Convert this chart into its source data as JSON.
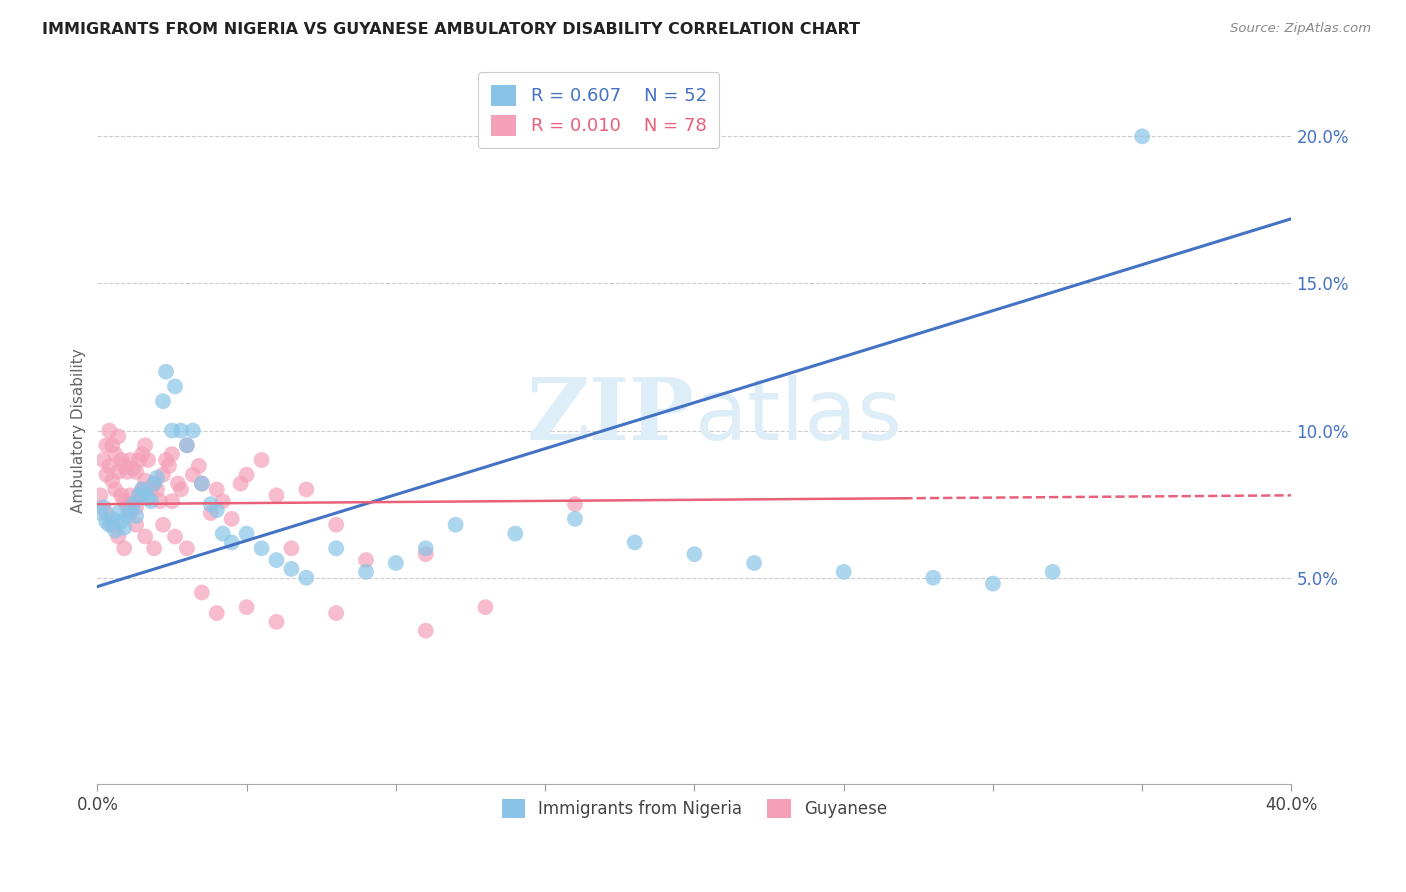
{
  "title": "IMMIGRANTS FROM NIGERIA VS GUYANESE AMBULATORY DISABILITY CORRELATION CHART",
  "source": "Source: ZipAtlas.com",
  "ylabel": "Ambulatory Disability",
  "xlim": [
    0.0,
    0.4
  ],
  "ylim": [
    -0.02,
    0.22
  ],
  "yticks": [
    0.05,
    0.1,
    0.15,
    0.2
  ],
  "ytick_labels": [
    "5.0%",
    "10.0%",
    "15.0%",
    "20.0%"
  ],
  "xticks": [
    0.0,
    0.05,
    0.1,
    0.15,
    0.2,
    0.25,
    0.3,
    0.35,
    0.4
  ],
  "xtick_labels": [
    "0.0%",
    "",
    "",
    "",
    "",
    "",
    "",
    "",
    "40.0%"
  ],
  "legend_label1": "Immigrants from Nigeria",
  "legend_label2": "Guyanese",
  "r1": "R = 0.607",
  "n1": "N = 52",
  "r2": "R = 0.010",
  "n2": "N = 78",
  "blue_color": "#89c4e8",
  "pink_color": "#f4a0b8",
  "blue_line_color": "#4472c4",
  "pink_line_color": "#e8607a",
  "watermark_color": "#ddeef8",
  "nigeria_blue_line": [
    [
      0.0,
      0.047
    ],
    [
      0.4,
      0.172
    ]
  ],
  "guyanese_pink_line_solid": [
    [
      0.0,
      0.075
    ],
    [
      0.27,
      0.077
    ]
  ],
  "guyanese_pink_line_dashed": [
    [
      0.27,
      0.077
    ],
    [
      0.4,
      0.078
    ]
  ],
  "nigeria_x": [
    0.001,
    0.002,
    0.003,
    0.004,
    0.005,
    0.006,
    0.007,
    0.008,
    0.009,
    0.01,
    0.011,
    0.012,
    0.013,
    0.014,
    0.015,
    0.016,
    0.017,
    0.018,
    0.019,
    0.02,
    0.022,
    0.023,
    0.025,
    0.026,
    0.028,
    0.03,
    0.032,
    0.035,
    0.038,
    0.04,
    0.042,
    0.045,
    0.05,
    0.055,
    0.06,
    0.065,
    0.07,
    0.08,
    0.09,
    0.1,
    0.11,
    0.12,
    0.14,
    0.16,
    0.18,
    0.2,
    0.22,
    0.25,
    0.28,
    0.3,
    0.32,
    0.35
  ],
  "nigeria_y": [
    0.072,
    0.074,
    0.069,
    0.068,
    0.07,
    0.066,
    0.072,
    0.069,
    0.067,
    0.071,
    0.073,
    0.075,
    0.071,
    0.078,
    0.08,
    0.079,
    0.077,
    0.076,
    0.082,
    0.084,
    0.11,
    0.12,
    0.1,
    0.115,
    0.1,
    0.095,
    0.1,
    0.082,
    0.075,
    0.073,
    0.065,
    0.062,
    0.065,
    0.06,
    0.056,
    0.053,
    0.05,
    0.06,
    0.052,
    0.055,
    0.06,
    0.068,
    0.065,
    0.07,
    0.062,
    0.058,
    0.055,
    0.052,
    0.05,
    0.048,
    0.052,
    0.2
  ],
  "guyanese_x": [
    0.001,
    0.002,
    0.003,
    0.003,
    0.004,
    0.004,
    0.005,
    0.005,
    0.006,
    0.006,
    0.007,
    0.007,
    0.008,
    0.008,
    0.009,
    0.009,
    0.01,
    0.01,
    0.011,
    0.011,
    0.012,
    0.012,
    0.013,
    0.013,
    0.014,
    0.014,
    0.015,
    0.015,
    0.016,
    0.016,
    0.017,
    0.018,
    0.019,
    0.02,
    0.021,
    0.022,
    0.023,
    0.024,
    0.025,
    0.025,
    0.027,
    0.028,
    0.03,
    0.032,
    0.034,
    0.035,
    0.038,
    0.04,
    0.042,
    0.045,
    0.048,
    0.05,
    0.055,
    0.06,
    0.065,
    0.07,
    0.08,
    0.09,
    0.11,
    0.13,
    0.003,
    0.005,
    0.007,
    0.009,
    0.011,
    0.013,
    0.016,
    0.019,
    0.022,
    0.026,
    0.03,
    0.035,
    0.04,
    0.05,
    0.06,
    0.08,
    0.11,
    0.16
  ],
  "guyanese_y": [
    0.078,
    0.09,
    0.095,
    0.085,
    0.1,
    0.088,
    0.095,
    0.083,
    0.092,
    0.08,
    0.098,
    0.086,
    0.09,
    0.078,
    0.088,
    0.076,
    0.086,
    0.074,
    0.09,
    0.078,
    0.087,
    0.075,
    0.086,
    0.074,
    0.09,
    0.078,
    0.092,
    0.08,
    0.095,
    0.083,
    0.09,
    0.08,
    0.082,
    0.08,
    0.076,
    0.085,
    0.09,
    0.088,
    0.092,
    0.076,
    0.082,
    0.08,
    0.095,
    0.085,
    0.088,
    0.082,
    0.072,
    0.08,
    0.076,
    0.07,
    0.082,
    0.085,
    0.09,
    0.078,
    0.06,
    0.08,
    0.068,
    0.056,
    0.058,
    0.04,
    0.072,
    0.068,
    0.064,
    0.06,
    0.072,
    0.068,
    0.064,
    0.06,
    0.068,
    0.064,
    0.06,
    0.045,
    0.038,
    0.04,
    0.035,
    0.038,
    0.032,
    0.075
  ]
}
